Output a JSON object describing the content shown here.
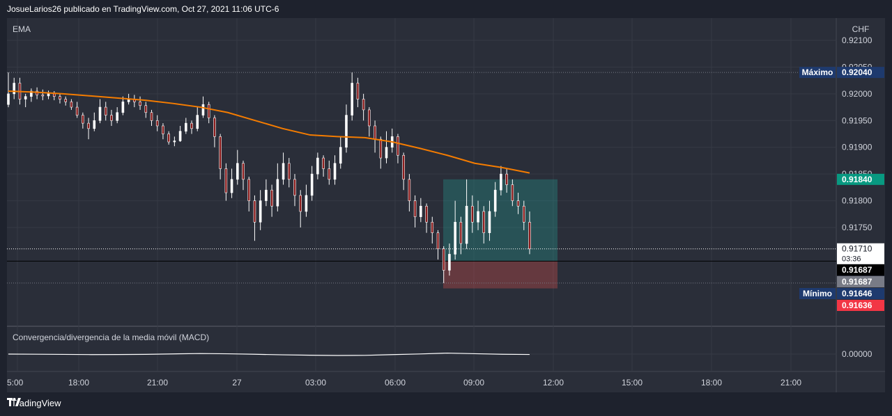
{
  "header": {
    "title": "JosueLarios26 publicado en TradingView.com, Oct 27, 2021 11:06 UTC-6"
  },
  "main_pane": {
    "indicator": "EMA",
    "currency": "CHF"
  },
  "macd_pane": {
    "title": "Convergencia/divergencia de la media móvil (MACD)",
    "axis_label": "0.00000"
  },
  "footer": {
    "brand": "TradingView",
    "logo_icon": "tradingview-logo-icon"
  },
  "colors": {
    "background": "#1e222d",
    "pane": "#2a2e39",
    "ema": "#f57c00",
    "candle_up": "#ffffff",
    "candle_down": "#8b1c1c",
    "long_target_zone": "#26a69a",
    "long_stop_zone": "#ef5350",
    "max_label": "#1e3a6e",
    "price_label": "#ffffff"
  },
  "chart_data": {
    "type": "candlestick",
    "symbol_currency": "CHF",
    "y_ticks": [
      "0.92100",
      "0.92050",
      "0.92000",
      "0.91950",
      "0.91900",
      "0.91850",
      "0.91800",
      "0.91750"
    ],
    "ylim": [
      0.916,
      0.9212
    ],
    "x_tick_labels": [
      "5:00",
      "18:00",
      "21:00",
      "27",
      "03:00",
      "06:00",
      "09:00",
      "12:00",
      "15:00",
      "18:00",
      "21:00"
    ],
    "price_labels": {
      "max": {
        "label": "Máximo",
        "value": "0.92040"
      },
      "target": {
        "value": "0.91840"
      },
      "current": {
        "value": "0.91710",
        "countdown": "03:36"
      },
      "entry": {
        "value": "0.91687"
      },
      "entry_secondary": {
        "value": "0.91687"
      },
      "min": {
        "label": "Mínimo",
        "value": "0.91646"
      },
      "stop": {
        "value": "0.91636"
      }
    },
    "position": {
      "type": "long",
      "entry": 0.91687,
      "target": 0.9184,
      "stop": 0.91636
    },
    "ema_series": {
      "name": "EMA",
      "points": [
        [
          0,
          0.92005
        ],
        [
          10,
          0.92003
        ],
        [
          20,
          0.92
        ],
        [
          30,
          0.91996
        ],
        [
          40,
          0.91992
        ],
        [
          50,
          0.91988
        ],
        [
          60,
          0.91982
        ],
        [
          70,
          0.91975
        ],
        [
          80,
          0.91965
        ],
        [
          90,
          0.9195
        ],
        [
          100,
          0.91935
        ],
        [
          110,
          0.91923
        ],
        [
          120,
          0.9192
        ],
        [
          130,
          0.91918
        ],
        [
          140,
          0.9191
        ],
        [
          150,
          0.91898
        ],
        [
          160,
          0.91885
        ],
        [
          170,
          0.9187
        ],
        [
          180,
          0.91862
        ],
        [
          190,
          0.91852
        ]
      ]
    },
    "candles": [
      [
        0,
        0.9198,
        0.92,
        0.9204,
        0.91975
      ],
      [
        1,
        0.92,
        0.9202,
        0.9203,
        0.9199
      ],
      [
        2,
        0.9202,
        0.9199,
        0.9203,
        0.9198
      ],
      [
        3,
        0.9199,
        0.91995,
        0.92,
        0.91975
      ],
      [
        4,
        0.91995,
        0.92005,
        0.9201,
        0.91985
      ],
      [
        5,
        0.92005,
        0.91998,
        0.92012,
        0.9199
      ],
      [
        6,
        0.91998,
        0.91996,
        0.92008,
        0.91988
      ],
      [
        7,
        0.91996,
        0.92,
        0.92006,
        0.9199
      ],
      [
        8,
        0.92,
        0.91995,
        0.92005,
        0.91988
      ],
      [
        9,
        0.91995,
        0.9199,
        0.92,
        0.91982
      ],
      [
        10,
        0.9199,
        0.91985,
        0.91995,
        0.91978
      ],
      [
        11,
        0.91985,
        0.91975,
        0.9199,
        0.9197
      ],
      [
        12,
        0.91975,
        0.9196,
        0.91985,
        0.91955
      ],
      [
        13,
        0.9196,
        0.91945,
        0.91965,
        0.91935
      ],
      [
        14,
        0.91945,
        0.91935,
        0.91955,
        0.91915
      ],
      [
        15,
        0.91935,
        0.9195,
        0.91965,
        0.9193
      ],
      [
        16,
        0.9195,
        0.91975,
        0.9199,
        0.91945
      ],
      [
        17,
        0.91975,
        0.9196,
        0.91985,
        0.9195
      ],
      [
        18,
        0.9196,
        0.9195,
        0.9197,
        0.9194
      ],
      [
        19,
        0.9195,
        0.91965,
        0.91975,
        0.91945
      ],
      [
        20,
        0.91965,
        0.91985,
        0.91995,
        0.9196
      ],
      [
        21,
        0.91985,
        0.9199,
        0.92,
        0.9198
      ],
      [
        22,
        0.9199,
        0.91985,
        0.91998,
        0.91975
      ],
      [
        23,
        0.91985,
        0.91978,
        0.91995,
        0.9197
      ],
      [
        24,
        0.91978,
        0.91965,
        0.91985,
        0.91955
      ],
      [
        25,
        0.91965,
        0.9195,
        0.9197,
        0.9194
      ],
      [
        26,
        0.9195,
        0.9194,
        0.9196,
        0.9193
      ],
      [
        27,
        0.9194,
        0.91925,
        0.91945,
        0.91915
      ],
      [
        28,
        0.91925,
        0.9191,
        0.9193,
        0.91905
      ],
      [
        29,
        0.9191,
        0.91912,
        0.9192,
        0.91902
      ],
      [
        30,
        0.91912,
        0.9193,
        0.9194,
        0.9191
      ],
      [
        31,
        0.9193,
        0.91945,
        0.91955,
        0.91925
      ],
      [
        32,
        0.91945,
        0.91935,
        0.9195,
        0.91925
      ],
      [
        33,
        0.91935,
        0.9196,
        0.91975,
        0.9193
      ],
      [
        34,
        0.9196,
        0.9198,
        0.91995,
        0.91955
      ],
      [
        35,
        0.9198,
        0.91955,
        0.91985,
        0.91945
      ],
      [
        36,
        0.91955,
        0.9192,
        0.9196,
        0.919
      ],
      [
        37,
        0.9192,
        0.9186,
        0.91925,
        0.9184
      ],
      [
        38,
        0.9186,
        0.91815,
        0.9187,
        0.918
      ],
      [
        39,
        0.91815,
        0.9184,
        0.9186,
        0.91805
      ],
      [
        40,
        0.9184,
        0.9187,
        0.91895,
        0.9183
      ],
      [
        41,
        0.9187,
        0.9184,
        0.91875,
        0.9182
      ],
      [
        42,
        0.9184,
        0.918,
        0.91845,
        0.9178
      ],
      [
        43,
        0.918,
        0.9176,
        0.9181,
        0.91725
      ],
      [
        44,
        0.9176,
        0.918,
        0.9182,
        0.91745
      ],
      [
        45,
        0.918,
        0.9182,
        0.9184,
        0.9179
      ],
      [
        46,
        0.9182,
        0.9179,
        0.9183,
        0.9177
      ],
      [
        47,
        0.9179,
        0.9184,
        0.9187,
        0.9178
      ],
      [
        48,
        0.9184,
        0.9187,
        0.9189,
        0.9183
      ],
      [
        49,
        0.9187,
        0.9184,
        0.9188,
        0.91825
      ],
      [
        50,
        0.9184,
        0.9181,
        0.9185,
        0.9179
      ],
      [
        51,
        0.9181,
        0.9178,
        0.9182,
        0.9175
      ],
      [
        52,
        0.9178,
        0.9181,
        0.9183,
        0.9177
      ],
      [
        53,
        0.9181,
        0.9185,
        0.91865,
        0.918
      ],
      [
        54,
        0.9185,
        0.9188,
        0.9189,
        0.9184
      ],
      [
        55,
        0.9188,
        0.9186,
        0.91885,
        0.91845
      ],
      [
        56,
        0.9186,
        0.9184,
        0.91875,
        0.9183
      ],
      [
        57,
        0.9184,
        0.9187,
        0.91885,
        0.9183
      ],
      [
        58,
        0.9187,
        0.919,
        0.9192,
        0.9186
      ],
      [
        59,
        0.919,
        0.9196,
        0.9198,
        0.9189
      ],
      [
        60,
        0.9196,
        0.9202,
        0.9204,
        0.9195
      ],
      [
        61,
        0.9202,
        0.9199,
        0.9203,
        0.91975
      ],
      [
        62,
        0.9199,
        0.9197,
        0.92,
        0.9195
      ],
      [
        63,
        0.9197,
        0.9194,
        0.91975,
        0.9192
      ],
      [
        64,
        0.9194,
        0.91915,
        0.9195,
        0.9189
      ],
      [
        65,
        0.91915,
        0.9188,
        0.9192,
        0.9186
      ],
      [
        66,
        0.9188,
        0.919,
        0.9193,
        0.9187
      ],
      [
        67,
        0.919,
        0.9192,
        0.91935,
        0.9189
      ],
      [
        68,
        0.9192,
        0.91885,
        0.91925,
        0.9187
      ],
      [
        69,
        0.91885,
        0.9184,
        0.9189,
        0.9182
      ],
      [
        70,
        0.9184,
        0.918,
        0.9185,
        0.9178
      ],
      [
        71,
        0.918,
        0.9177,
        0.9181,
        0.9175
      ],
      [
        72,
        0.9177,
        0.9179,
        0.91805,
        0.9176
      ],
      [
        73,
        0.9179,
        0.9176,
        0.91795,
        0.9174
      ],
      [
        74,
        0.9176,
        0.9174,
        0.9177,
        0.9172
      ],
      [
        75,
        0.9174,
        0.9171,
        0.91745,
        0.9169
      ],
      [
        76,
        0.9171,
        0.9167,
        0.91715,
        0.91646
      ],
      [
        77,
        0.9167,
        0.917,
        0.9172,
        0.9166
      ],
      [
        78,
        0.917,
        0.9176,
        0.918,
        0.9169
      ],
      [
        79,
        0.9176,
        0.9172,
        0.9177,
        0.917
      ],
      [
        80,
        0.9172,
        0.9179,
        0.9184,
        0.9171
      ],
      [
        81,
        0.9179,
        0.9176,
        0.9181,
        0.9174
      ],
      [
        82,
        0.9176,
        0.9178,
        0.918,
        0.91745
      ],
      [
        83,
        0.9178,
        0.9174,
        0.9179,
        0.9172
      ],
      [
        84,
        0.9174,
        0.9178,
        0.918,
        0.91725
      ],
      [
        85,
        0.9178,
        0.9182,
        0.91835,
        0.9177
      ],
      [
        86,
        0.9182,
        0.9185,
        0.91865,
        0.9181
      ],
      [
        87,
        0.9185,
        0.9183,
        0.9186,
        0.91815
      ],
      [
        88,
        0.9183,
        0.918,
        0.9184,
        0.9179
      ],
      [
        89,
        0.918,
        0.9179,
        0.91815,
        0.91775
      ],
      [
        90,
        0.9179,
        0.9176,
        0.918,
        0.91745
      ],
      [
        91,
        0.9176,
        0.9171,
        0.9178,
        0.917
      ]
    ],
    "macd_series": {
      "name": "MACD",
      "points": [
        [
          0,
          0.0
        ],
        [
          10,
          -0.2
        ],
        [
          20,
          -0.5
        ],
        [
          30,
          -0.8
        ],
        [
          40,
          -0.7
        ],
        [
          50,
          -0.4
        ],
        [
          60,
          0.3
        ],
        [
          70,
          0.9
        ],
        [
          80,
          0.5
        ],
        [
          90,
          -0.3
        ],
        [
          100,
          -1.2
        ],
        [
          110,
          -1.8
        ],
        [
          120,
          -2.2
        ],
        [
          130,
          -2.0
        ],
        [
          140,
          -0.8
        ],
        [
          150,
          0.2
        ],
        [
          160,
          1.6
        ],
        [
          170,
          0.6
        ],
        [
          180,
          -0.3
        ],
        [
          190,
          -0.6
        ]
      ]
    }
  }
}
